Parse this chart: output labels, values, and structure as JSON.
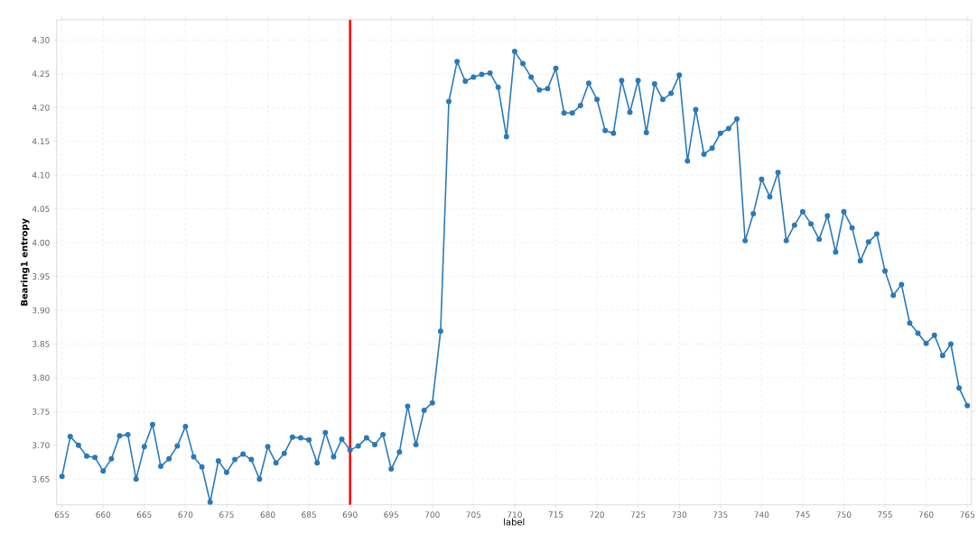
{
  "chart_data": {
    "type": "line",
    "xlabel": "label",
    "ylabel": "Bearing1 entropy",
    "x": [
      655,
      656,
      657,
      658,
      659,
      660,
      661,
      662,
      663,
      664,
      665,
      666,
      667,
      668,
      669,
      670,
      671,
      672,
      673,
      674,
      675,
      676,
      677,
      678,
      679,
      680,
      681,
      682,
      683,
      684,
      685,
      686,
      687,
      688,
      689,
      690,
      691,
      692,
      693,
      694,
      695,
      696,
      697,
      698,
      699,
      700,
      701,
      702,
      703,
      704,
      705,
      706,
      707,
      708,
      709,
      710,
      711,
      712,
      713,
      714,
      715,
      716,
      717,
      718,
      719,
      720,
      721,
      722,
      723,
      724,
      725,
      726,
      727,
      728,
      729,
      730,
      731,
      732,
      733,
      734,
      735,
      736,
      737,
      738,
      739,
      740,
      741,
      742,
      743,
      744,
      745,
      746,
      747,
      748,
      749,
      750,
      751,
      752,
      753,
      754,
      755,
      756,
      757,
      758,
      759,
      760,
      761,
      762,
      763,
      764,
      765
    ],
    "series": [
      {
        "color": "#2a7ab9",
        "values": [
          3.654,
          3.713,
          3.7,
          3.684,
          3.682,
          3.662,
          3.68,
          3.714,
          3.716,
          3.65,
          3.698,
          3.731,
          3.669,
          3.68,
          3.699,
          3.728,
          3.683,
          3.668,
          3.616,
          3.677,
          3.66,
          3.679,
          3.687,
          3.679,
          3.65,
          3.698,
          3.674,
          3.688,
          3.712,
          3.711,
          3.708,
          3.674,
          3.719,
          3.683,
          3.709,
          3.693,
          3.699,
          3.711,
          3.701,
          3.716,
          3.665,
          3.69,
          3.758,
          3.701,
          3.752,
          3.763,
          3.869,
          4.209,
          4.268,
          4.239,
          4.245,
          4.249,
          4.251,
          4.23,
          4.157,
          4.283,
          4.265,
          4.245,
          4.226,
          4.228,
          4.258,
          4.192,
          4.192,
          4.203,
          4.236,
          4.212,
          4.166,
          4.162,
          4.24,
          4.193,
          4.24,
          4.163,
          4.235,
          4.212,
          4.221,
          4.248,
          4.121,
          4.197,
          4.131,
          4.14,
          4.162,
          4.169,
          4.183,
          4.003,
          4.043,
          4.094,
          4.068,
          4.104,
          4.003,
          4.026,
          4.046,
          4.028,
          4.005,
          4.04,
          3.986,
          4.046,
          4.022,
          3.973,
          4.001,
          4.013,
          3.958,
          3.922,
          3.938,
          3.881,
          3.866,
          3.851,
          3.863,
          3.833,
          3.85,
          3.785,
          3.759
        ]
      }
    ],
    "xlim": [
      654.35,
      765.5
    ],
    "ylim": [
      3.612,
      4.33
    ],
    "xticks": [
      655,
      660,
      665,
      670,
      675,
      680,
      685,
      690,
      695,
      700,
      705,
      710,
      715,
      720,
      725,
      730,
      735,
      740,
      745,
      750,
      755,
      760,
      765
    ],
    "yticks": [
      3.65,
      {
        "value": 3.7,
        "label": "3.70"
      },
      3.75,
      {
        "value": 3.8,
        "label": "3.80"
      },
      3.85,
      {
        "value": 3.9,
        "label": "3.90"
      },
      3.95,
      {
        "value": 4,
        "label": "4.00"
      },
      4.05,
      {
        "value": 4.1,
        "label": "4.10"
      },
      4.15,
      {
        "value": 4.2,
        "label": "4.20"
      },
      4.25,
      {
        "value": 4.3,
        "label": "4.30"
      }
    ],
    "grid": true,
    "marker": "circle",
    "line_style": "solid",
    "ref_lines": [
      {
        "axis": "x",
        "value": 690,
        "color": "#ff0000"
      }
    ]
  }
}
